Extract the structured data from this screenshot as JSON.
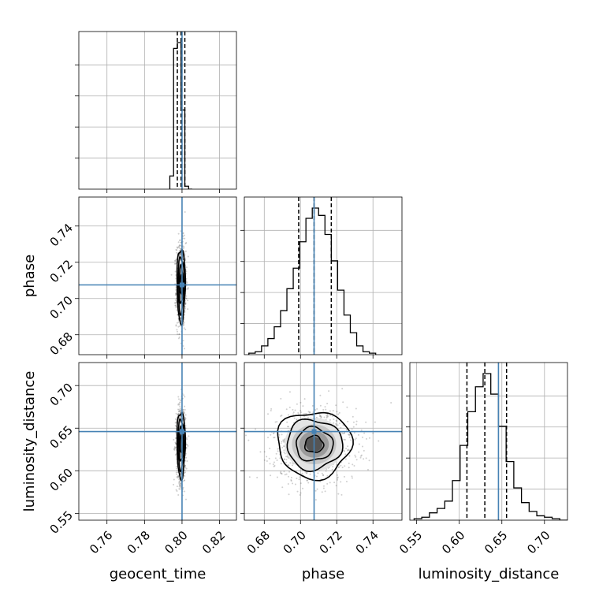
{
  "colors": {
    "truth": "#4682b4",
    "hist": "#000000",
    "grid": "#b0b0b0",
    "scatter": "#444444"
  },
  "chart_data": {
    "type": "corner",
    "parameters": [
      "geocent_time",
      "phase",
      "luminosity_distance"
    ],
    "truths": [
      0.8,
      0.7075,
      0.646
    ],
    "quantiles": [
      [
        0.7975,
        0.7995,
        0.8015
      ],
      [
        0.699,
        0.7075,
        0.717
      ],
      [
        0.609,
        0.63,
        0.6555
      ]
    ],
    "ranges": [
      [
        0.745,
        0.829
      ],
      [
        0.669,
        0.756
      ],
      [
        0.542,
        0.727
      ]
    ],
    "ticks": [
      {
        "values": [
          0.76,
          0.78,
          0.8,
          0.82
        ],
        "labels": [
          "0.76",
          "0.78",
          "0.80",
          "0.82"
        ]
      },
      {
        "values": [
          0.68,
          0.7,
          0.72,
          0.74
        ],
        "labels": [
          "0.68",
          "0.70",
          "0.72",
          "0.74"
        ]
      },
      {
        "values": [
          0.55,
          0.6,
          0.65,
          0.7
        ],
        "labels": [
          "0.55",
          "0.60",
          "0.65",
          "0.70"
        ]
      }
    ],
    "histograms": [
      {
        "edges": [
          0.7935,
          0.7955,
          0.7975,
          0.7995,
          0.8015,
          0.8035,
          0.8055
        ],
        "counts": [
          0.09,
          0.96,
          1.0,
          0.54,
          0.02,
          0.0
        ]
      },
      {
        "edges": [
          0.6715,
          0.675,
          0.6785,
          0.682,
          0.6855,
          0.689,
          0.6925,
          0.696,
          0.6995,
          0.703,
          0.7065,
          0.71,
          0.7135,
          0.717,
          0.7205,
          0.724,
          0.7275,
          0.731,
          0.7345,
          0.738,
          0.7415
        ],
        "counts": [
          0.01,
          0.02,
          0.06,
          0.11,
          0.19,
          0.3,
          0.45,
          0.59,
          0.77,
          0.93,
          1.0,
          0.95,
          0.82,
          0.64,
          0.44,
          0.27,
          0.15,
          0.06,
          0.02,
          0.01
        ]
      },
      {
        "edges": [
          0.547,
          0.556,
          0.565,
          0.574,
          0.583,
          0.592,
          0.601,
          0.61,
          0.619,
          0.628,
          0.637,
          0.646,
          0.655,
          0.664,
          0.673,
          0.682,
          0.691,
          0.7,
          0.709,
          0.718,
          0.727
        ],
        "counts": [
          0.01,
          0.02,
          0.05,
          0.08,
          0.13,
          0.27,
          0.51,
          0.74,
          0.91,
          1.0,
          0.86,
          0.64,
          0.4,
          0.22,
          0.12,
          0.06,
          0.03,
          0.02,
          0.01,
          0.0
        ]
      }
    ],
    "pairs": [
      {
        "x": 0,
        "y": 1,
        "center": [
          0.7995,
          0.7075
        ],
        "spread": [
          0.0011,
          0.0102
        ],
        "contours": [
          0.5,
          1.0,
          1.5,
          2.0
        ]
      },
      {
        "x": 0,
        "y": 2,
        "center": [
          0.7995,
          0.631
        ],
        "spread": [
          0.0011,
          0.0195
        ],
        "contours": [
          0.5,
          1.0,
          1.5,
          2.0
        ]
      },
      {
        "x": 1,
        "y": 2,
        "center": [
          0.7075,
          0.631
        ],
        "spread": [
          0.0102,
          0.0195
        ],
        "contours": [
          0.5,
          1.0,
          1.5,
          2.0
        ]
      }
    ],
    "grid": true
  }
}
